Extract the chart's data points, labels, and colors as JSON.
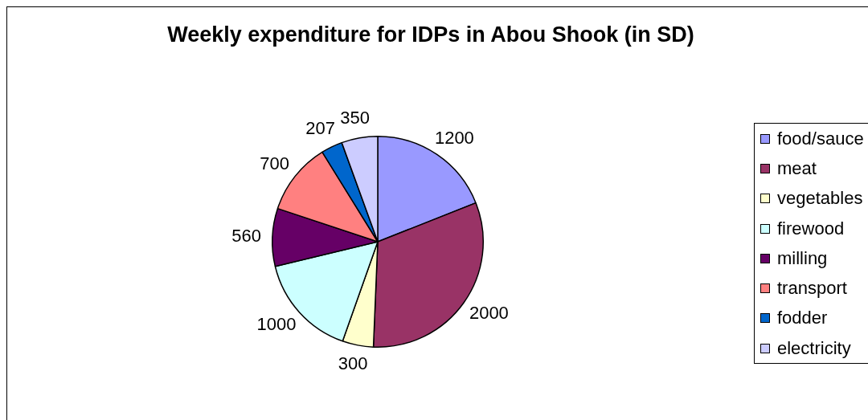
{
  "chart_data": {
    "type": "pie",
    "title": "Weekly expenditure for IDPs in Abou Shook (in SD)",
    "categories": [
      "food/sauce",
      "meat",
      "vegetables",
      "firewood",
      "milling",
      "transport",
      "fodder",
      "electricity"
    ],
    "values": [
      1200,
      2000,
      300,
      1000,
      560,
      700,
      207,
      350
    ],
    "colors": [
      "#9999ff",
      "#993366",
      "#ffffcc",
      "#ccffff",
      "#660066",
      "#ff8080",
      "#0066cc",
      "#ccccff"
    ],
    "legend": "right",
    "data_labels": true
  }
}
